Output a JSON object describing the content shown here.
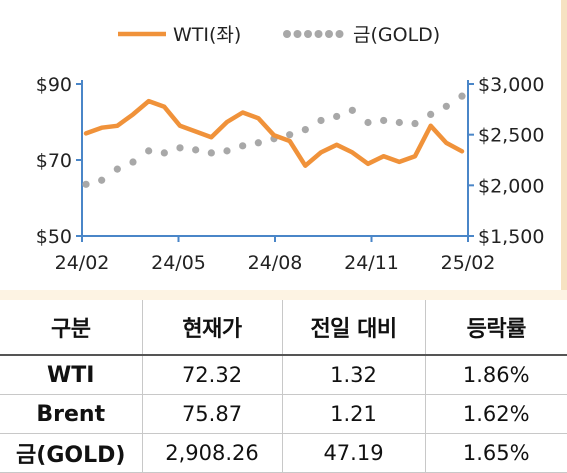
{
  "chart_data": {
    "type": "line",
    "x_ticks": [
      "24/02",
      "24/05",
      "24/08",
      "24/11",
      "25/02"
    ],
    "y_left": {
      "ticks": [
        "$90",
        "$70",
        "$50"
      ],
      "range": [
        50,
        90
      ]
    },
    "y_right": {
      "ticks": [
        "$3,000",
        "$2,500",
        "$2,000",
        "$1,500"
      ],
      "range": [
        1500,
        3000
      ]
    },
    "colors": {
      "wti": "#f0923a",
      "gold": "#a8a8a8",
      "axis": "#4a86c8"
    },
    "series": [
      {
        "name": "WTI(좌)",
        "axis": "left",
        "style": "solid",
        "x": [
          "24/02",
          "24/02",
          "24/03",
          "24/03",
          "24/04",
          "24/04",
          "24/05",
          "24/05",
          "24/06",
          "24/06",
          "24/07",
          "24/07",
          "24/08",
          "24/08",
          "24/09",
          "24/09",
          "24/10",
          "24/10",
          "24/11",
          "24/11",
          "24/12",
          "24/12",
          "25/01",
          "25/01",
          "25/02"
        ],
        "values": [
          77,
          78.5,
          79,
          82,
          85.5,
          84,
          79,
          77.5,
          76,
          80,
          82.5,
          81,
          76.5,
          75,
          68.5,
          72,
          74,
          72,
          69,
          71,
          69.5,
          71,
          79,
          74.5,
          72.3
        ]
      },
      {
        "name": "금(GOLD)",
        "axis": "right",
        "style": "dotted",
        "x": [
          "24/02",
          "24/02",
          "24/03",
          "24/03",
          "24/04",
          "24/04",
          "24/05",
          "24/05",
          "24/06",
          "24/06",
          "24/07",
          "24/07",
          "24/08",
          "24/08",
          "24/09",
          "24/09",
          "24/10",
          "24/10",
          "24/11",
          "24/11",
          "24/12",
          "24/12",
          "25/01",
          "25/01",
          "25/02"
        ],
        "values": [
          2010,
          2050,
          2160,
          2230,
          2340,
          2320,
          2370,
          2350,
          2320,
          2340,
          2390,
          2420,
          2460,
          2500,
          2550,
          2640,
          2680,
          2740,
          2620,
          2640,
          2620,
          2610,
          2700,
          2780,
          2880
        ]
      }
    ]
  },
  "table": {
    "headers": [
      "구분",
      "현재가",
      "전일 대비",
      "등락률"
    ],
    "rows": [
      [
        "WTI",
        "72.32",
        "1.32",
        "1.86%"
      ],
      [
        "Brent",
        "75.87",
        "1.21",
        "1.62%"
      ],
      [
        "금(GOLD)",
        "2,908.26",
        "47.19",
        "1.65%"
      ]
    ]
  }
}
